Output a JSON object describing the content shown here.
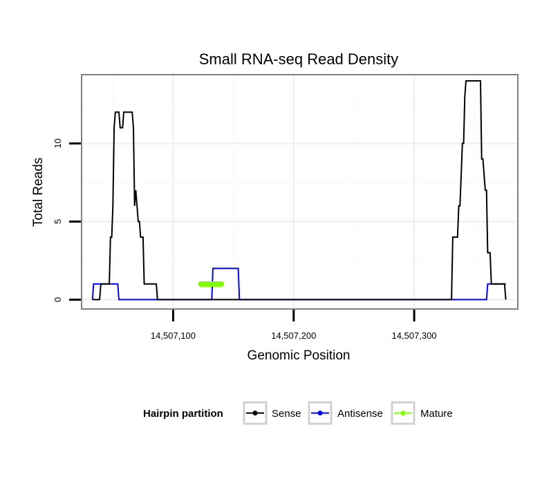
{
  "chart_data": {
    "type": "line",
    "title": "Small RNA-seq Read Density",
    "xlabel": "Genomic Position",
    "ylabel": "Total Reads",
    "xlim": [
      14507024,
      14507386
    ],
    "ylim": [
      -0.6,
      14.4
    ],
    "x_ticks": [
      14507100,
      14507200,
      14507300
    ],
    "x_tick_labels": [
      "14,507,100",
      "14,507,200",
      "14,507,300"
    ],
    "y_ticks": [
      0,
      5,
      10
    ],
    "y_tick_labels": [
      "0",
      "5",
      "10"
    ],
    "grid": true,
    "legend": {
      "title": "Hairpin partition",
      "position": "bottom",
      "entries": [
        "Sense",
        "Antisense",
        "Mature"
      ]
    },
    "series": [
      {
        "name": "Sense",
        "color": "#000000",
        "points": [
          [
            14507033,
            0
          ],
          [
            14507039,
            0
          ],
          [
            14507040,
            1
          ],
          [
            14507047,
            1
          ],
          [
            14507048,
            4
          ],
          [
            14507049,
            4
          ],
          [
            14507050,
            6
          ],
          [
            14507051,
            11
          ],
          [
            14507052,
            12
          ],
          [
            14507055,
            12
          ],
          [
            14507056,
            11
          ],
          [
            14507058,
            11
          ],
          [
            14507059,
            12
          ],
          [
            14507066,
            12
          ],
          [
            14507067,
            11
          ],
          [
            14507068,
            6
          ],
          [
            14507069,
            7
          ],
          [
            14507070,
            6
          ],
          [
            14507071,
            5
          ],
          [
            14507072,
            5
          ],
          [
            14507073,
            4
          ],
          [
            14507075,
            4
          ],
          [
            14507076,
            1
          ],
          [
            14507086,
            1
          ],
          [
            14507087,
            0
          ],
          [
            14507120,
            0
          ],
          [
            14507331,
            0
          ],
          [
            14507332,
            4
          ],
          [
            14507336,
            4
          ],
          [
            14507337,
            6
          ],
          [
            14507338,
            6
          ],
          [
            14507339,
            8
          ],
          [
            14507340,
            10
          ],
          [
            14507341,
            10
          ],
          [
            14507342,
            13
          ],
          [
            14507343,
            14
          ],
          [
            14507355,
            14
          ],
          [
            14507356,
            9
          ],
          [
            14507357,
            9
          ],
          [
            14507358,
            8
          ],
          [
            14507359,
            7
          ],
          [
            14507360,
            7
          ],
          [
            14507361,
            3
          ],
          [
            14507363,
            3
          ],
          [
            14507364,
            1
          ],
          [
            14507375,
            1
          ],
          [
            14507376,
            0
          ]
        ]
      },
      {
        "name": "Antisense",
        "color": "#0000ff",
        "points": [
          [
            14507033,
            0
          ],
          [
            14507034,
            1
          ],
          [
            14507054,
            1
          ],
          [
            14507055,
            0
          ],
          [
            14507132,
            0
          ],
          [
            14507133,
            2
          ],
          [
            14507154,
            2
          ],
          [
            14507155,
            0
          ],
          [
            14507360,
            0
          ],
          [
            14507361,
            1
          ],
          [
            14507376,
            1
          ]
        ]
      },
      {
        "name": "Mature",
        "color": "#7fff00",
        "points": [
          [
            14507123,
            1
          ],
          [
            14507140,
            1
          ]
        ]
      }
    ]
  }
}
